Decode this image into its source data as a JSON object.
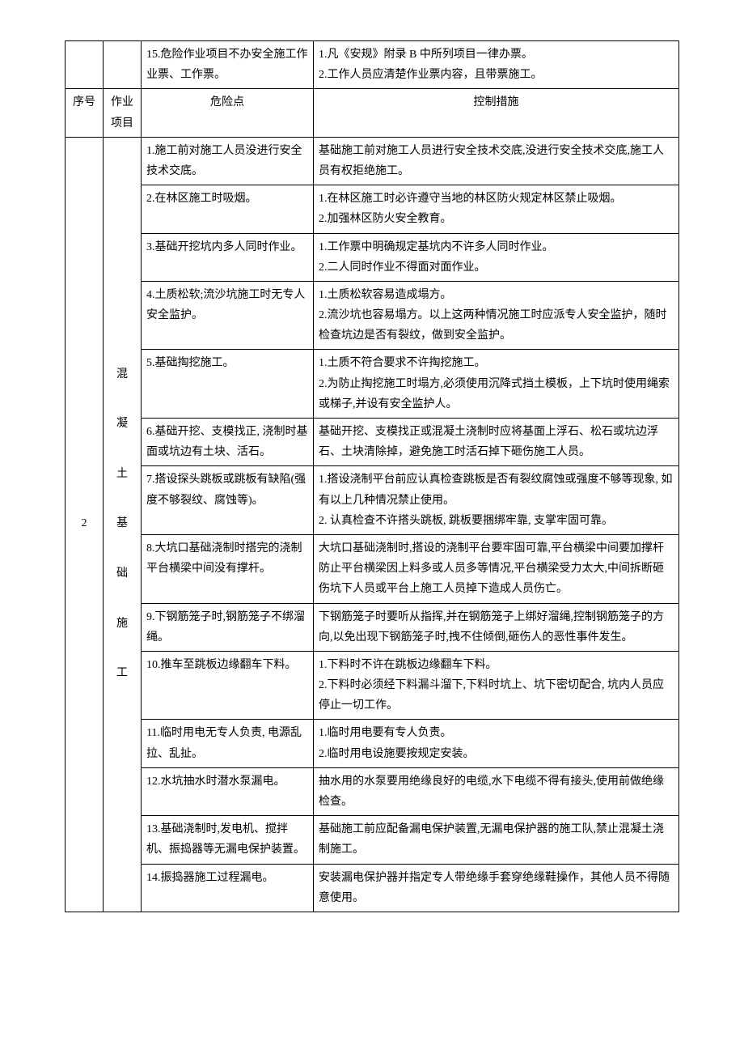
{
  "header": {
    "seq": "序号",
    "job": "作业项目",
    "risk": "危险点",
    "control": "控制措施"
  },
  "preRow": {
    "risk": "15.危险作业项目不办安全施工作业票、工作票。",
    "control": "1.凡《安规》附录 B 中所列项目一律办票。\n2.工作人员应清楚作业票内容，且带票施工。"
  },
  "section": {
    "seq": "2",
    "job": "混凝土基础施工"
  },
  "rows": [
    {
      "risk": "1.施工前对施工人员没进行安全技术交底。",
      "control": "基础施工前对施工人员进行安全技术交底,没进行安全技术交底,施工人员有权拒绝施工。"
    },
    {
      "risk": "2.在林区施工时吸烟。",
      "control": "1.在林区施工时必许遵守当地的林区防火规定林区禁止吸烟。\n2.加强林区防火安全教育。"
    },
    {
      "risk": "3.基础开挖坑内多人同时作业。",
      "control": "1.工作票中明确规定基坑内不许多人同时作业。\n2.二人同时作业不得面对面作业。"
    },
    {
      "risk": "4.土质松软;流沙坑施工时无专人安全监护。",
      "control": "1.土质松软容易造成塌方。\n2.流沙坑也容易塌方。以上这两种情况施工时应派专人安全监护，随时检查坑边是否有裂纹，做到安全监护。"
    },
    {
      "risk": "5.基础掏挖施工。",
      "control": "1.土质不符合要求不许掏挖施工。\n2.为防止掏挖施工时塌方,必须使用沉降式挡土模板，上下坑时使用绳索或梯子,并设有安全监护人。"
    },
    {
      "risk": "6.基础开挖、支模找正, 浇制时基面或坑边有土块、活石。",
      "control": "基础开挖、支模找正或混凝土浇制时应将基面上浮石、松石或坑边浮石、土块清除掉，避免施工时活石掉下砸伤施工人员。"
    },
    {
      "risk": "7.搭设探头跳板或跳板有缺陷(强度不够裂纹、腐蚀等)。",
      "control": "1.搭设浇制平台前应认真检查跳板是否有裂纹腐蚀或强度不够等现象, 如有以上几种情况禁止使用。\n2. 认真检查不许搭头跳板, 跳板要捆绑牢靠, 支掌牢固可靠。"
    },
    {
      "risk": "8.大坑口基础浇制时搭完的浇制平台横梁中间没有撑杆。",
      "control": "大坑口基础浇制时,搭设的浇制平台要牢固可靠,平台横梁中间要加撑杆防止平台横梁因上料多或人员多等情况,平台横梁受力太大,中间拆断砸伤坑下人员或平台上施工人员掉下造成人员伤亡。"
    },
    {
      "risk": "9.下钢筋笼子时,钢筋笼子不绑溜绳。",
      "control": "下钢筋笼子时要听从指挥,并在钢筋笼子上绑好溜绳,控制钢筋笼子的方向,以免出现下钢筋笼子时,拽不住倾倒,砸伤人的恶性事件发生。"
    },
    {
      "risk": "10.推车至跳板边缘翻车下料。",
      "control": "1.下料时不许在跳板边缘翻车下料。\n2.下料时必须经下料漏斗溜下,下料时坑上、坑下密切配合, 坑内人员应停止一切工作。"
    },
    {
      "risk": "11.临时用电无专人负责, 电源乱拉、乱扯。",
      "control": "1.临时用电要有专人负责。\n2.临时用电设施要按规定安装。"
    },
    {
      "risk": "12.水坑抽水时潜水泵漏电。",
      "control": "抽水用的水泵要用绝缘良好的电缆,水下电缆不得有接头,使用前做绝缘检查。"
    },
    {
      "risk": "13.基础浇制时,发电机、搅拌机、振捣器等无漏电保护装置。",
      "control": "基础施工前应配备漏电保护装置,无漏电保护器的施工队,禁止混凝土浇制施工。"
    },
    {
      "risk": "14.振捣器施工过程漏电。",
      "control": "安装漏电保护器并指定专人带绝缘手套穿绝缘鞋操作，其他人员不得随意使用。"
    }
  ]
}
